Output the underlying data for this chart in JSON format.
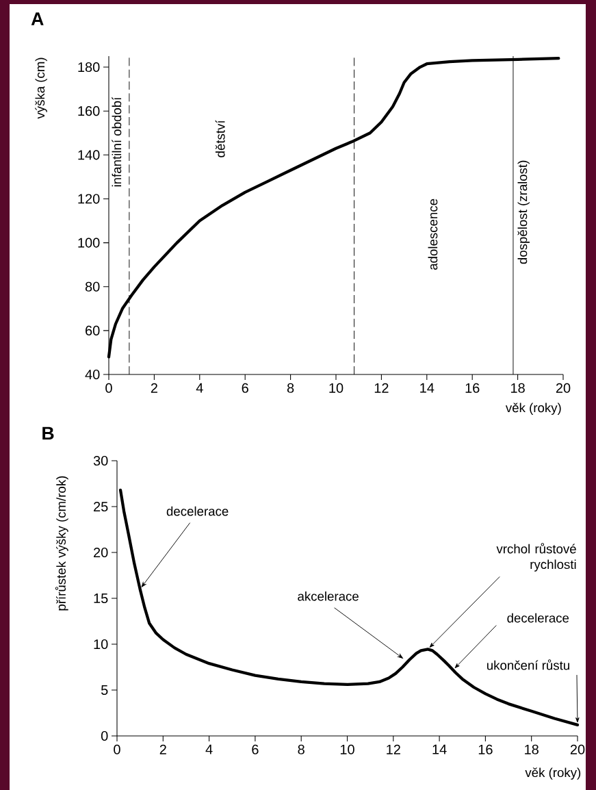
{
  "chart_data": [
    {
      "type": "line",
      "title": "A",
      "xlabel": "věk (roky)",
      "ylabel": "výška (cm)",
      "xlim": [
        0,
        20
      ],
      "ylim": [
        40,
        185
      ],
      "xticks": [
        0,
        2,
        4,
        6,
        8,
        10,
        12,
        14,
        16,
        18,
        20
      ],
      "yticks": [
        40,
        60,
        80,
        100,
        120,
        140,
        160,
        180
      ],
      "x": [
        0,
        0.1,
        0.3,
        0.6,
        1,
        1.5,
        2,
        3,
        4,
        5,
        6,
        7,
        8,
        9,
        10,
        10.7,
        11.5,
        12,
        12.5,
        12.8,
        13,
        13.3,
        13.7,
        14,
        15,
        16,
        18,
        19.8
      ],
      "series": [
        {
          "color": "#000000",
          "values": [
            48,
            56,
            63,
            70,
            76,
            83,
            89,
            100,
            110,
            117,
            123,
            128,
            133,
            138,
            143,
            146,
            150,
            155,
            162,
            168,
            173,
            177,
            180,
            181.5,
            182.5,
            183,
            183.5,
            184
          ]
        }
      ],
      "ref_lines": [
        {
          "axis": "x",
          "value": 0.9,
          "color": "#000000",
          "line_style": "dashed"
        },
        {
          "axis": "x",
          "value": 10.8,
          "color": "#000000",
          "line_style": "dashed"
        },
        {
          "axis": "x",
          "value": 17.8,
          "color": "#000000",
          "line_style": "solid"
        }
      ],
      "annotations": [
        "infantilní období",
        "dětství",
        "adolescence",
        "dospělost (zralost)"
      ]
    },
    {
      "type": "line",
      "title": "B",
      "xlabel": "věk (roky)",
      "ylabel": "přírůstek výšky (cm/rok)",
      "xlim": [
        0,
        20
      ],
      "ylim": [
        0,
        30
      ],
      "xticks": [
        0,
        2,
        4,
        6,
        8,
        10,
        12,
        14,
        16,
        18,
        20
      ],
      "yticks": [
        0,
        5,
        10,
        15,
        20,
        25,
        30
      ],
      "x": [
        0.15,
        0.3,
        0.5,
        0.75,
        1,
        1.2,
        1.4,
        1.7,
        2,
        2.5,
        3,
        4,
        5,
        6,
        7,
        8,
        9,
        10,
        10.9,
        11.4,
        11.8,
        12.1,
        12.4,
        12.7,
        13,
        13.2,
        13.5,
        13.7,
        13.9,
        14.2,
        14.4,
        14.7,
        15,
        15.5,
        16,
        16.5,
        17,
        18,
        19,
        20
      ],
      "series": [
        {
          "color": "#000000",
          "values": [
            26.8,
            24.5,
            22,
            18.8,
            16,
            14,
            12.3,
            11.2,
            10.5,
            9.6,
            8.9,
            7.9,
            7.2,
            6.6,
            6.2,
            5.9,
            5.7,
            5.6,
            5.7,
            5.9,
            6.3,
            6.8,
            7.5,
            8.3,
            9.0,
            9.3,
            9.45,
            9.3,
            8.9,
            8.2,
            7.7,
            6.9,
            6.2,
            5.3,
            4.6,
            4.0,
            3.5,
            2.7,
            1.9,
            1.2
          ]
        }
      ],
      "annotations": [
        {
          "text": "decelerace",
          "x": 1,
          "y": 16
        },
        {
          "text": "akcelerace",
          "x": 12.5,
          "y": 8.3
        },
        {
          "text": "vrchol růstové rychlosti",
          "x": 13.5,
          "y": 9.45
        },
        {
          "text": "decelerace",
          "x": 14.6,
          "y": 7.2
        },
        {
          "text": "ukončení růstu",
          "x": 20,
          "y": 1.2
        }
      ]
    }
  ]
}
